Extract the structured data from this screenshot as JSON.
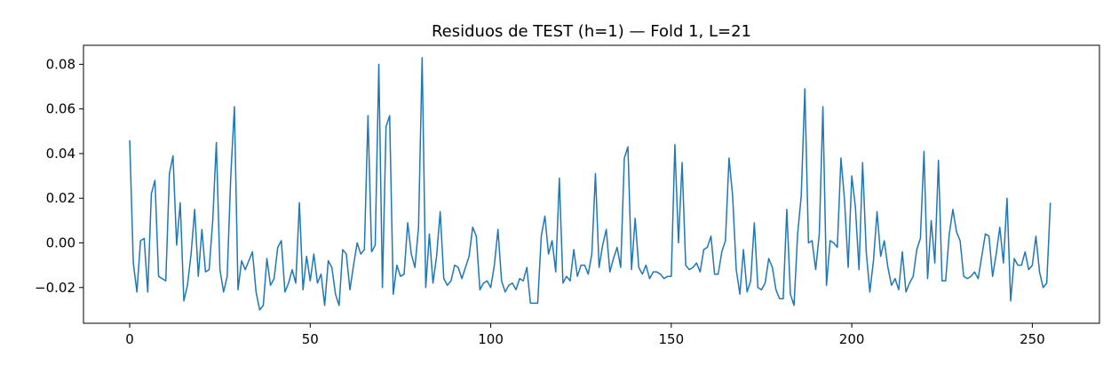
{
  "chart_data": {
    "type": "line",
    "title": "Residuos de TEST (h=1) — Fold 1, L=21",
    "xlabel": "",
    "ylabel": "",
    "xlim": [
      -12.8,
      268.6
    ],
    "ylim": [
      -0.036,
      0.0885
    ],
    "xticks": [
      0,
      50,
      100,
      150,
      200,
      250
    ],
    "xtick_labels": [
      "0",
      "50",
      "100",
      "150",
      "200",
      "250"
    ],
    "yticks": [
      -0.02,
      0.0,
      0.02,
      0.04,
      0.06,
      0.08
    ],
    "ytick_labels": [
      "−0.02",
      "0.00",
      "0.02",
      "0.04",
      "0.06",
      "0.08"
    ],
    "grid": false,
    "legend": "none",
    "series": [
      {
        "color": "#1f77b4",
        "x_start": 0,
        "x_step": 1,
        "values": [
          0.046,
          -0.009,
          -0.022,
          0.001,
          0.002,
          -0.022,
          0.022,
          0.028,
          -0.015,
          -0.016,
          -0.017,
          0.031,
          0.039,
          -0.001,
          0.018,
          -0.026,
          -0.019,
          -0.005,
          0.015,
          -0.015,
          0.006,
          -0.013,
          -0.012,
          0.01,
          0.045,
          -0.012,
          -0.022,
          -0.015,
          0.03,
          0.061,
          -0.021,
          -0.008,
          -0.012,
          -0.008,
          -0.004,
          -0.022,
          -0.03,
          -0.028,
          -0.007,
          -0.019,
          -0.016,
          -0.002,
          0.001,
          -0.022,
          -0.018,
          -0.012,
          -0.018,
          0.018,
          -0.021,
          -0.006,
          -0.017,
          -0.005,
          -0.018,
          -0.014,
          -0.028,
          -0.008,
          -0.011,
          -0.023,
          -0.028,
          -0.003,
          -0.005,
          -0.021,
          -0.01,
          0.0,
          -0.005,
          -0.003,
          0.057,
          -0.004,
          -0.001,
          0.08,
          -0.02,
          0.052,
          0.057,
          -0.023,
          -0.01,
          -0.015,
          -0.014,
          0.009,
          -0.005,
          -0.011,
          0.007,
          0.083,
          -0.02,
          0.004,
          -0.018,
          -0.006,
          0.014,
          -0.016,
          -0.019,
          -0.017,
          -0.01,
          -0.011,
          -0.016,
          -0.011,
          -0.006,
          0.007,
          0.003,
          -0.021,
          -0.018,
          -0.017,
          -0.02,
          -0.01,
          0.006,
          -0.017,
          -0.022,
          -0.019,
          -0.018,
          -0.021,
          -0.016,
          -0.017,
          -0.011,
          -0.027,
          -0.027,
          -0.027,
          0.003,
          0.012,
          -0.005,
          0.001,
          -0.013,
          0.029,
          -0.018,
          -0.015,
          -0.017,
          -0.003,
          -0.015,
          -0.01,
          -0.01,
          -0.014,
          -0.005,
          0.031,
          -0.011,
          -0.001,
          0.006,
          -0.013,
          -0.007,
          -0.002,
          -0.011,
          0.038,
          0.043,
          -0.012,
          0.011,
          -0.011,
          -0.014,
          -0.01,
          -0.016,
          -0.013,
          -0.013,
          -0.014,
          -0.016,
          -0.015,
          -0.015,
          0.044,
          0.0,
          0.036,
          -0.01,
          -0.012,
          -0.011,
          -0.009,
          -0.013,
          -0.003,
          -0.002,
          0.003,
          -0.014,
          -0.014,
          -0.004,
          0.001,
          0.038,
          0.021,
          -0.012,
          -0.023,
          -0.003,
          -0.022,
          -0.017,
          0.009,
          -0.02,
          -0.021,
          -0.018,
          -0.007,
          -0.011,
          -0.021,
          -0.025,
          -0.025,
          0.015,
          -0.023,
          -0.028,
          0.004,
          0.021,
          0.069,
          0.0,
          0.001,
          -0.012,
          0.004,
          0.061,
          -0.019,
          0.001,
          0.0,
          -0.002,
          0.038,
          0.019,
          -0.011,
          0.03,
          0.016,
          -0.012,
          0.036,
          -0.004,
          -0.022,
          -0.008,
          0.014,
          -0.006,
          0.001,
          -0.011,
          -0.019,
          -0.016,
          -0.021,
          -0.004,
          -0.022,
          -0.018,
          -0.015,
          -0.003,
          0.002,
          0.041,
          -0.016,
          0.01,
          -0.009,
          0.037,
          -0.017,
          -0.017,
          0.004,
          0.015,
          0.005,
          0.001,
          -0.015,
          -0.016,
          -0.015,
          -0.013,
          -0.016,
          -0.006,
          0.004,
          0.003,
          -0.015,
          -0.005,
          0.007,
          -0.009,
          0.02,
          -0.026,
          -0.007,
          -0.01,
          -0.01,
          -0.004,
          -0.012,
          -0.01,
          0.003,
          -0.013,
          -0.02,
          -0.018,
          0.018
        ]
      }
    ]
  }
}
